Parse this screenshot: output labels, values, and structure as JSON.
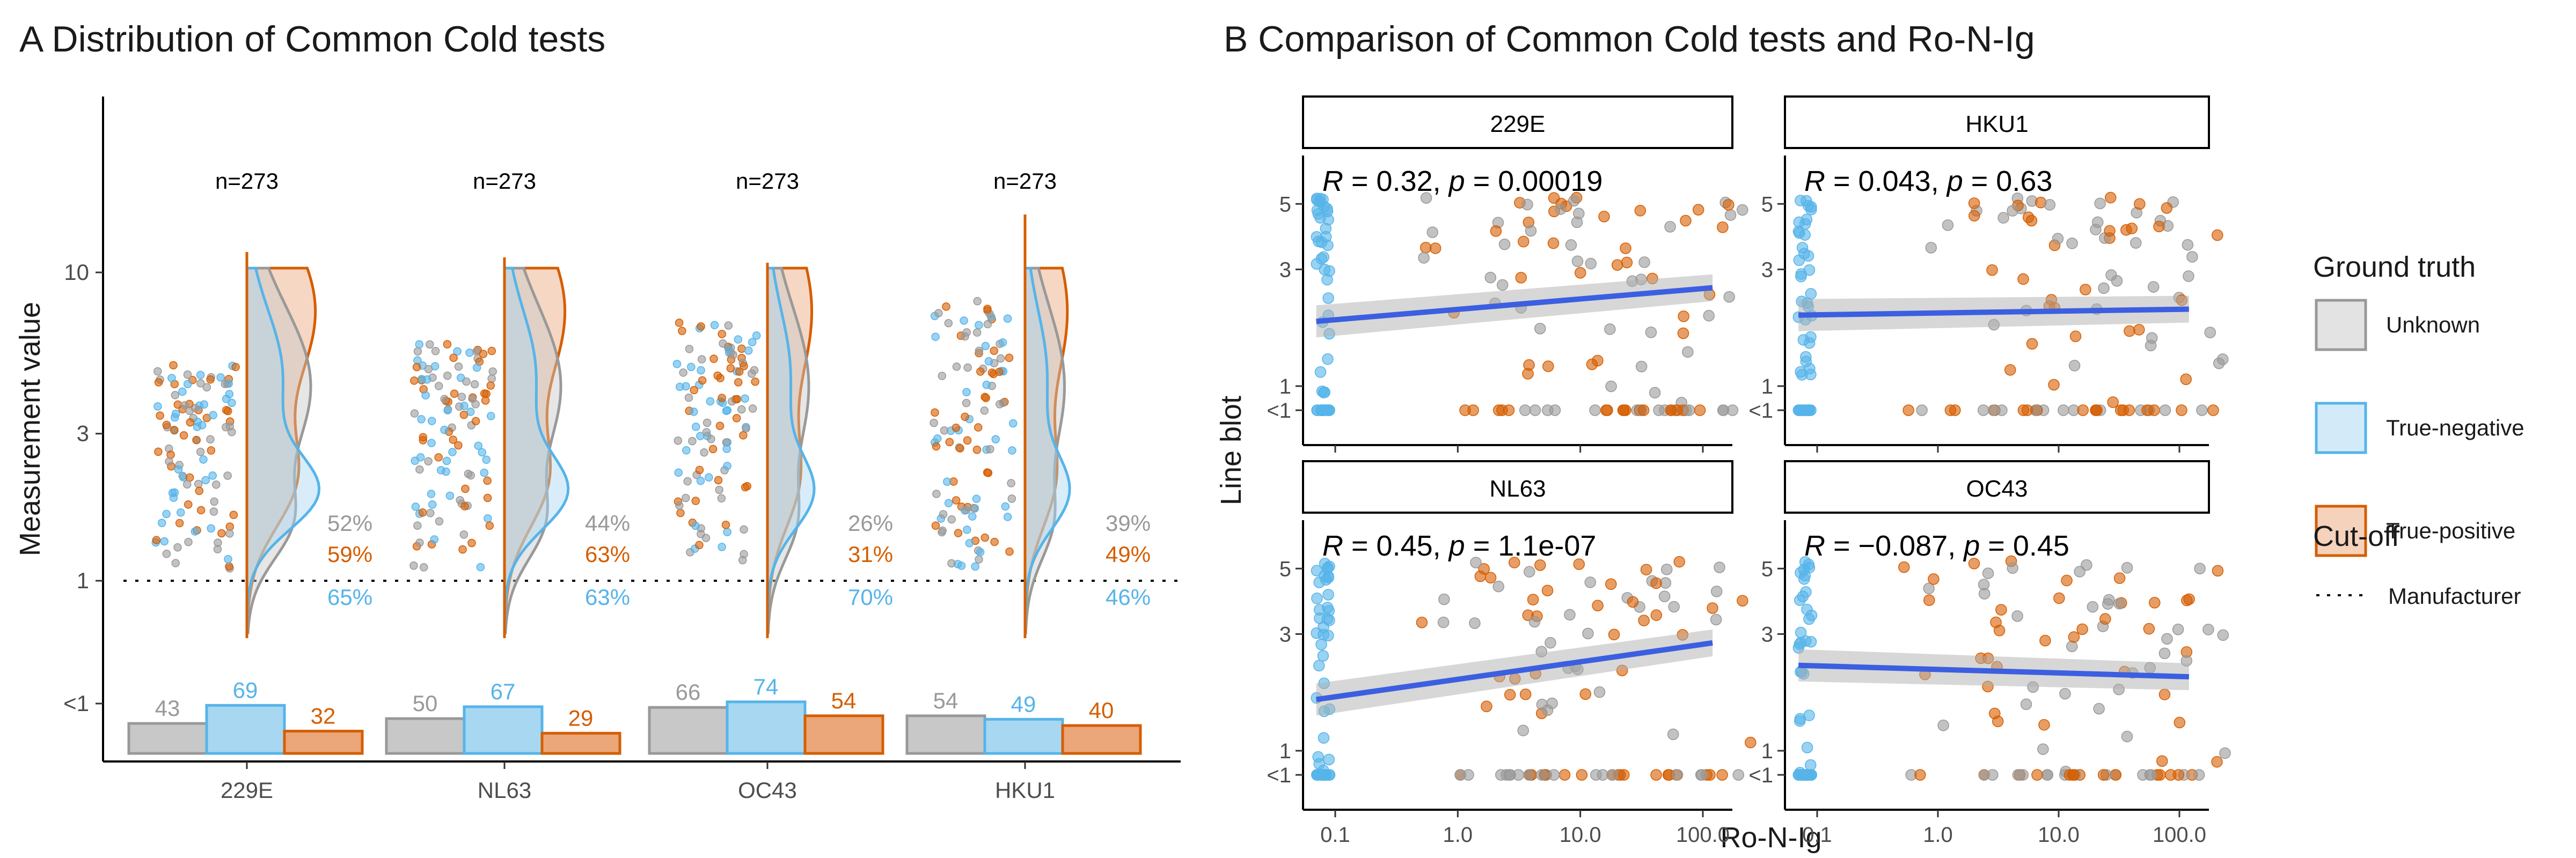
{
  "colors": {
    "unknown": "#999999",
    "unknown_fill": "#c8c8c8",
    "negative": "#56b4e9",
    "negative_fill": "#a8d7f2",
    "positive": "#d55e00",
    "positive_fill": "#eba67a",
    "trend": "#3b5fe0"
  },
  "chart_data": [
    {
      "panel": "A",
      "title": "A Distribution of Common Cold tests",
      "type": "violin",
      "ylabel": "Measurement value",
      "y_ticks": [
        "<1",
        "1",
        "3",
        "10"
      ],
      "y_scale": "log",
      "cutoff_y": 1,
      "categories": [
        "229E",
        "NL63",
        "OC43",
        "HKU1"
      ],
      "groups": [
        {
          "category": "229E",
          "n_label": "n=273",
          "pct_unknown": "52%",
          "pct_positive": "59%",
          "pct_negative": "65%",
          "below_counts": {
            "unknown": 43,
            "negative": 69,
            "positive": 32
          }
        },
        {
          "category": "NL63",
          "n_label": "n=273",
          "pct_unknown": "44%",
          "pct_positive": "63%",
          "pct_negative": "63%",
          "below_counts": {
            "unknown": 50,
            "negative": 67,
            "positive": 29
          }
        },
        {
          "category": "OC43",
          "n_label": "n=273",
          "pct_unknown": "26%",
          "pct_positive": "31%",
          "pct_negative": "70%",
          "below_counts": {
            "unknown": 66,
            "negative": 74,
            "positive": 54
          }
        },
        {
          "category": "HKU1",
          "n_label": "n=273",
          "pct_unknown": "39%",
          "pct_positive": "49%",
          "pct_negative": "46%",
          "below_counts": {
            "unknown": 54,
            "negative": 49,
            "positive": 40
          }
        }
      ]
    },
    {
      "panel": "B",
      "title": "B Comparison of Common Cold tests and Ro-N-Ig",
      "type": "scatter",
      "xlabel": "Ro-N-Ig",
      "ylabel": "Line blot",
      "x_scale": "log",
      "x_ticks": [
        "0.1",
        "1.0",
        "10.0",
        "100.0"
      ],
      "y_ticks": [
        "<1",
        "1",
        "3",
        "5"
      ],
      "facets": [
        {
          "name": "229E",
          "stat_r": "0.32",
          "stat_p": "0.00019",
          "trend": {
            "y_start": 2.0,
            "y_end": 2.6
          }
        },
        {
          "name": "HKU1",
          "stat_r": "0.043",
          "stat_p": "0.63",
          "trend": {
            "y_start": 2.1,
            "y_end": 2.2
          }
        },
        {
          "name": "NL63",
          "stat_r": "0.45",
          "stat_p": "1.1e-07",
          "trend": {
            "y_start": 1.8,
            "y_end": 2.8
          }
        },
        {
          "name": "OC43",
          "stat_r": "−0.087",
          "stat_p": "0.45",
          "trend": {
            "y_start": 2.35,
            "y_end": 2.15
          }
        }
      ]
    }
  ],
  "legend": {
    "ground_truth_title": "Ground truth",
    "items": [
      {
        "label": "Unknown",
        "key": "unknown"
      },
      {
        "label": "True-negative",
        "key": "negative"
      },
      {
        "label": "True-positive",
        "key": "positive"
      }
    ],
    "cutoff_title": "Cut-off",
    "cutoff_item": "Manufacturer"
  }
}
